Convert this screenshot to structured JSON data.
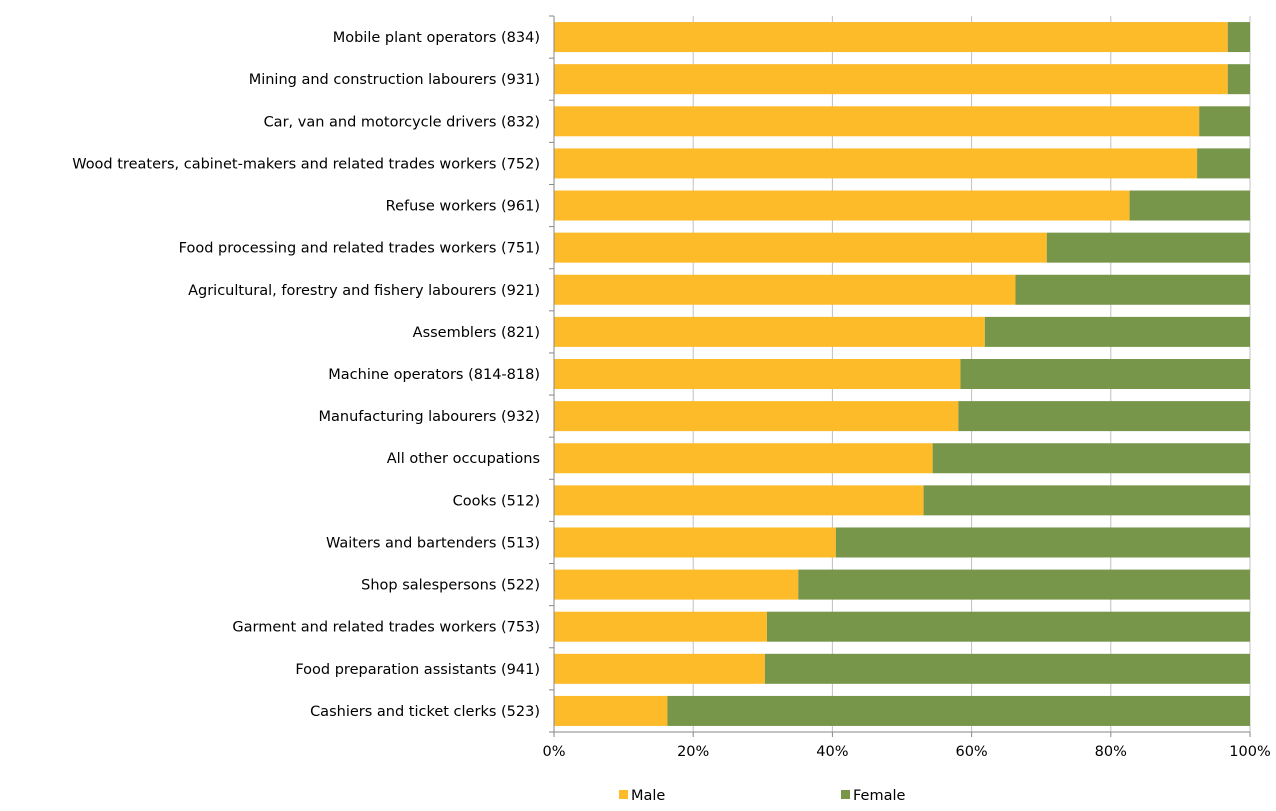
{
  "chart_data": {
    "type": "bar",
    "orientation": "horizontal",
    "stacked": true,
    "percent_stacked": true,
    "title": "",
    "xlabel": "",
    "ylabel": "",
    "categories": [
      "Mobile plant operators (834)",
      "Mining and construction labourers (931)",
      "Car, van and motorcycle drivers (832)",
      "Wood treaters, cabinet-makers and related trades workers (752)",
      "Refuse workers (961)",
      "Food processing and related trades workers (751)",
      "Agricultural, forestry and fishery labourers (921)",
      "Assemblers (821)",
      "Machine operators (814-818)",
      "Manufacturing labourers (932)",
      "All other occupations",
      "Cooks (512)",
      "Waiters and bartenders (513)",
      "Shop salespersons (522)",
      "Garment and related trades workers (753)",
      "Food preparation assistants (941)",
      "Cashiers and ticket clerks (523)"
    ],
    "series": [
      {
        "name": "Male",
        "color": "#FDBB2A",
        "values": [
          96.8,
          96.8,
          92.7,
          92.4,
          82.7,
          70.8,
          66.3,
          61.9,
          58.4,
          58.1,
          54.4,
          53.1,
          40.5,
          35.1,
          30.6,
          30.3,
          16.3
        ]
      },
      {
        "name": "Female",
        "color": "#77964A",
        "values": [
          3.2,
          3.2,
          7.3,
          7.6,
          17.3,
          29.2,
          33.7,
          38.1,
          41.6,
          41.9,
          45.6,
          46.9,
          59.5,
          64.9,
          69.4,
          69.7,
          83.7
        ]
      }
    ],
    "xlim": [
      0,
      100
    ],
    "x_ticks": [
      "0%",
      "20%",
      "40%",
      "60%",
      "80%",
      "100%"
    ],
    "x_tick_values": [
      0,
      20,
      40,
      60,
      80,
      100
    ],
    "grid": true,
    "gridline_color": "#C0C0C0",
    "legend_position": "bottom",
    "axis_color": "#878787"
  }
}
